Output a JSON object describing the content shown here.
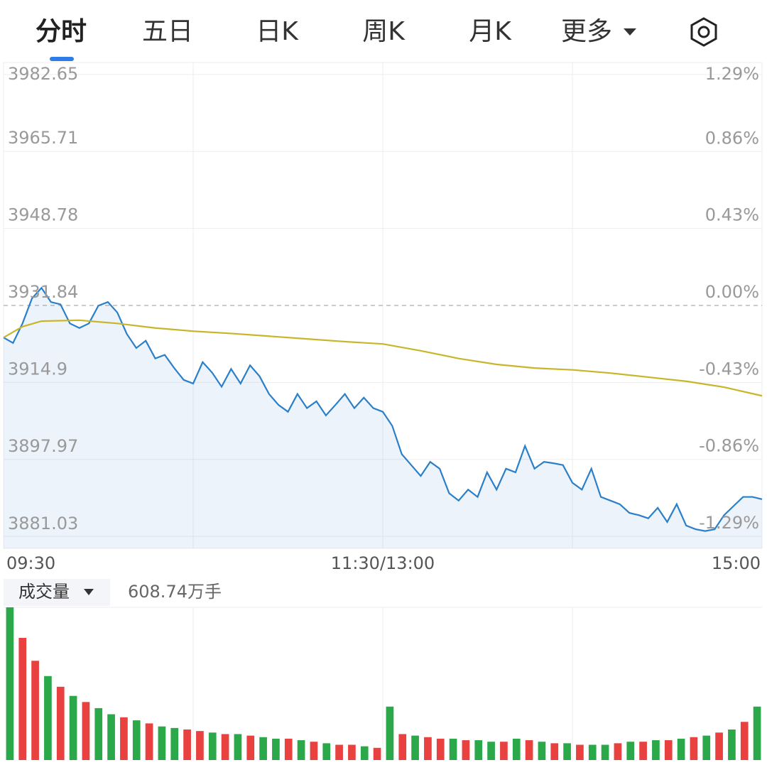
{
  "tabs": [
    "分时",
    "五日",
    "日K",
    "周K",
    "月K",
    "更多"
  ],
  "chart_data": [
    {
      "type": "line",
      "x": [
        0,
        3,
        6,
        9,
        12,
        15,
        18,
        21,
        24,
        27,
        30,
        33,
        36,
        39,
        42,
        45,
        48,
        51,
        54,
        57,
        60,
        63,
        66,
        69,
        72,
        75,
        78,
        81,
        84,
        87,
        90,
        93,
        96,
        99,
        102,
        105,
        108,
        111,
        114,
        117,
        120,
        123,
        126,
        129,
        132,
        135,
        138,
        141,
        144,
        147,
        150,
        153,
        156,
        159,
        162,
        165,
        168,
        171,
        174,
        177,
        180,
        183,
        186,
        189,
        192,
        195,
        198,
        201,
        204,
        207,
        210,
        213,
        216,
        219,
        222,
        225,
        228,
        231,
        234,
        237,
        240
      ],
      "series": [
        {
          "color": "#2b7fc9",
          "values": [
            3924.8,
            3923.6,
            3927.9,
            3933.4,
            3935.7,
            3932.6,
            3932.1,
            3927.9,
            3926.9,
            3927.9,
            3931.8,
            3932.6,
            3930.3,
            3925.6,
            3922.5,
            3924.1,
            3920.2,
            3921.0,
            3918.1,
            3915.5,
            3914.7,
            3919.4,
            3917.1,
            3914.0,
            3917.9,
            3914.7,
            3918.7,
            3916.3,
            3912.4,
            3910.0,
            3908.5,
            3912.4,
            3909.3,
            3910.8,
            3907.7,
            3910.0,
            3912.4,
            3909.3,
            3911.6,
            3909.3,
            3908.5,
            3905.4,
            3899.2,
            3896.8,
            3894.4,
            3897.5,
            3896.0,
            3890.6,
            3889.0,
            3891.4,
            3889.8,
            3895.2,
            3891.4,
            3896.0,
            3895.2,
            3901.0,
            3896.0,
            3897.5,
            3897.2,
            3896.8,
            3892.9,
            3891.4,
            3896.0,
            3889.8,
            3889.0,
            3888.2,
            3886.3,
            3885.8,
            3885.1,
            3887.4,
            3884.3,
            3888.2,
            3883.5,
            3882.7,
            3882.3,
            3882.7,
            3885.8,
            3887.8,
            3889.8,
            3889.8,
            3889.3
          ]
        },
        {
          "color": "#c9b52a",
          "x": [
            0,
            6,
            12,
            24,
            36,
            48,
            60,
            72,
            84,
            96,
            108,
            120,
            132,
            144,
            156,
            168,
            180,
            192,
            204,
            216,
            228,
            240
          ],
          "values": [
            3924.8,
            3927.2,
            3928.4,
            3928.6,
            3927.9,
            3926.9,
            3926.2,
            3925.7,
            3925.1,
            3924.5,
            3923.9,
            3923.4,
            3921.9,
            3920.2,
            3918.9,
            3918.1,
            3917.7,
            3917.0,
            3916.1,
            3915.2,
            3913.9,
            3912.0
          ]
        }
      ],
      "xlim": [
        0,
        240
      ],
      "xticks": [
        {
          "value": 0,
          "label": "09:30"
        },
        {
          "value": 120,
          "label": "11:30/13:00"
        },
        {
          "value": 240,
          "label": "15:00"
        }
      ],
      "ylim": [
        3878.5,
        3985.2
      ],
      "yticks": [
        3982.65,
        3965.71,
        3948.78,
        3931.84,
        3914.9,
        3897.97,
        3881.03
      ],
      "y2lim": [
        -1.357,
        1.357
      ],
      "y2ticks": [
        {
          "value": 1.29,
          "label": "1.29%"
        },
        {
          "value": 0.86,
          "label": "0.86%"
        },
        {
          "value": 0.43,
          "label": "0.43%"
        },
        {
          "value": 0,
          "label": "0.00%"
        },
        {
          "value": -0.43,
          "label": "-0.43%"
        },
        {
          "value": -0.86,
          "label": "-0.86%"
        },
        {
          "value": -1.29,
          "label": "-1.29%"
        }
      ],
      "grid": true
    },
    {
      "type": "bar",
      "title": "成交量",
      "total_label": "608.74万手",
      "ylim": [
        0,
        100
      ],
      "values": [
        100,
        80,
        65,
        55,
        48,
        42,
        38,
        34,
        30,
        28,
        26,
        24,
        22,
        21,
        20,
        19,
        18,
        17,
        17,
        16,
        15,
        14,
        14,
        13,
        12,
        11,
        10,
        10,
        9,
        8,
        35,
        17,
        16,
        15,
        14,
        14,
        13,
        13,
        12,
        12,
        14,
        13,
        12,
        11,
        11,
        10,
        10,
        10,
        11,
        12,
        12,
        13,
        13,
        14,
        15,
        16,
        18,
        20,
        25,
        35
      ],
      "colors": [
        "#2aa84a",
        "#e8413f",
        "#e8413f",
        "#2aa84a",
        "#e8413f",
        "#2aa84a",
        "#e8413f",
        "#2aa84a",
        "#2aa84a",
        "#e8413f",
        "#2aa84a",
        "#e8413f",
        "#2aa84a",
        "#2aa84a",
        "#e8413f",
        "#e8413f",
        "#2aa84a",
        "#e8413f",
        "#2aa84a",
        "#e8413f",
        "#2aa84a",
        "#2aa84a",
        "#e8413f",
        "#2aa84a",
        "#e8413f",
        "#2aa84a",
        "#e8413f",
        "#e8413f",
        "#2aa84a",
        "#e8413f",
        "#2aa84a",
        "#e8413f",
        "#2aa84a",
        "#e8413f",
        "#e8413f",
        "#2aa84a",
        "#e8413f",
        "#2aa84a",
        "#2aa84a",
        "#e8413f",
        "#2aa84a",
        "#e8413f",
        "#2aa84a",
        "#e8413f",
        "#2aa84a",
        "#e8413f",
        "#2aa84a",
        "#2aa84a",
        "#e8413f",
        "#2aa84a",
        "#e8413f",
        "#2aa84a",
        "#e8413f",
        "#2aa84a",
        "#e8413f",
        "#2aa84a",
        "#e8413f",
        "#2aa84a",
        "#e8413f",
        "#2aa84a"
      ]
    }
  ]
}
